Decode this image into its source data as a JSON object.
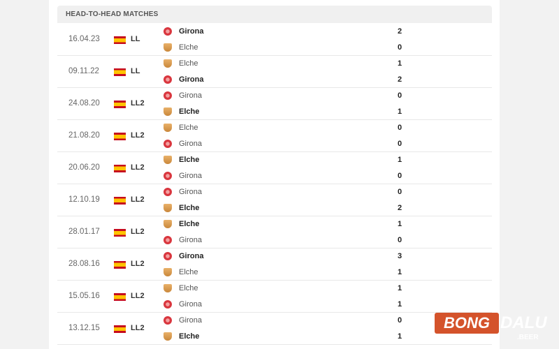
{
  "section_title": "HEAD-TO-HEAD MATCHES",
  "matches": [
    {
      "date": "16.04.23",
      "competition": "LL",
      "teams": [
        {
          "name": "Girona",
          "logo": "girona",
          "score": "2",
          "winner": true
        },
        {
          "name": "Elche",
          "logo": "elche",
          "score": "0",
          "winner": false
        }
      ]
    },
    {
      "date": "09.11.22",
      "competition": "LL",
      "teams": [
        {
          "name": "Elche",
          "logo": "elche",
          "score": "1",
          "winner": false
        },
        {
          "name": "Girona",
          "logo": "girona",
          "score": "2",
          "winner": true
        }
      ]
    },
    {
      "date": "24.08.20",
      "competition": "LL2",
      "teams": [
        {
          "name": "Girona",
          "logo": "girona",
          "score": "0",
          "winner": false
        },
        {
          "name": "Elche",
          "logo": "elche",
          "score": "1",
          "winner": true
        }
      ]
    },
    {
      "date": "21.08.20",
      "competition": "LL2",
      "teams": [
        {
          "name": "Elche",
          "logo": "elche",
          "score": "0",
          "winner": false
        },
        {
          "name": "Girona",
          "logo": "girona",
          "score": "0",
          "winner": false
        }
      ]
    },
    {
      "date": "20.06.20",
      "competition": "LL2",
      "teams": [
        {
          "name": "Elche",
          "logo": "elche",
          "score": "1",
          "winner": true
        },
        {
          "name": "Girona",
          "logo": "girona",
          "score": "0",
          "winner": false
        }
      ]
    },
    {
      "date": "12.10.19",
      "competition": "LL2",
      "teams": [
        {
          "name": "Girona",
          "logo": "girona",
          "score": "0",
          "winner": false
        },
        {
          "name": "Elche",
          "logo": "elche",
          "score": "2",
          "winner": true
        }
      ]
    },
    {
      "date": "28.01.17",
      "competition": "LL2",
      "teams": [
        {
          "name": "Elche",
          "logo": "elche",
          "score": "1",
          "winner": true
        },
        {
          "name": "Girona",
          "logo": "girona",
          "score": "0",
          "winner": false
        }
      ]
    },
    {
      "date": "28.08.16",
      "competition": "LL2",
      "teams": [
        {
          "name": "Girona",
          "logo": "girona",
          "score": "3",
          "winner": true
        },
        {
          "name": "Elche",
          "logo": "elche",
          "score": "1",
          "winner": false
        }
      ]
    },
    {
      "date": "15.05.16",
      "competition": "LL2",
      "teams": [
        {
          "name": "Elche",
          "logo": "elche",
          "score": "1",
          "winner": false
        },
        {
          "name": "Girona",
          "logo": "girona",
          "score": "1",
          "winner": false
        }
      ]
    },
    {
      "date": "13.12.15",
      "competition": "LL2",
      "teams": [
        {
          "name": "Girona",
          "logo": "girona",
          "score": "0",
          "winner": false
        },
        {
          "name": "Elche",
          "logo": "elche",
          "score": "1",
          "winner": true
        }
      ]
    }
  ],
  "watermark": {
    "part1": "BONGDALU",
    "part2": ".BEER"
  }
}
